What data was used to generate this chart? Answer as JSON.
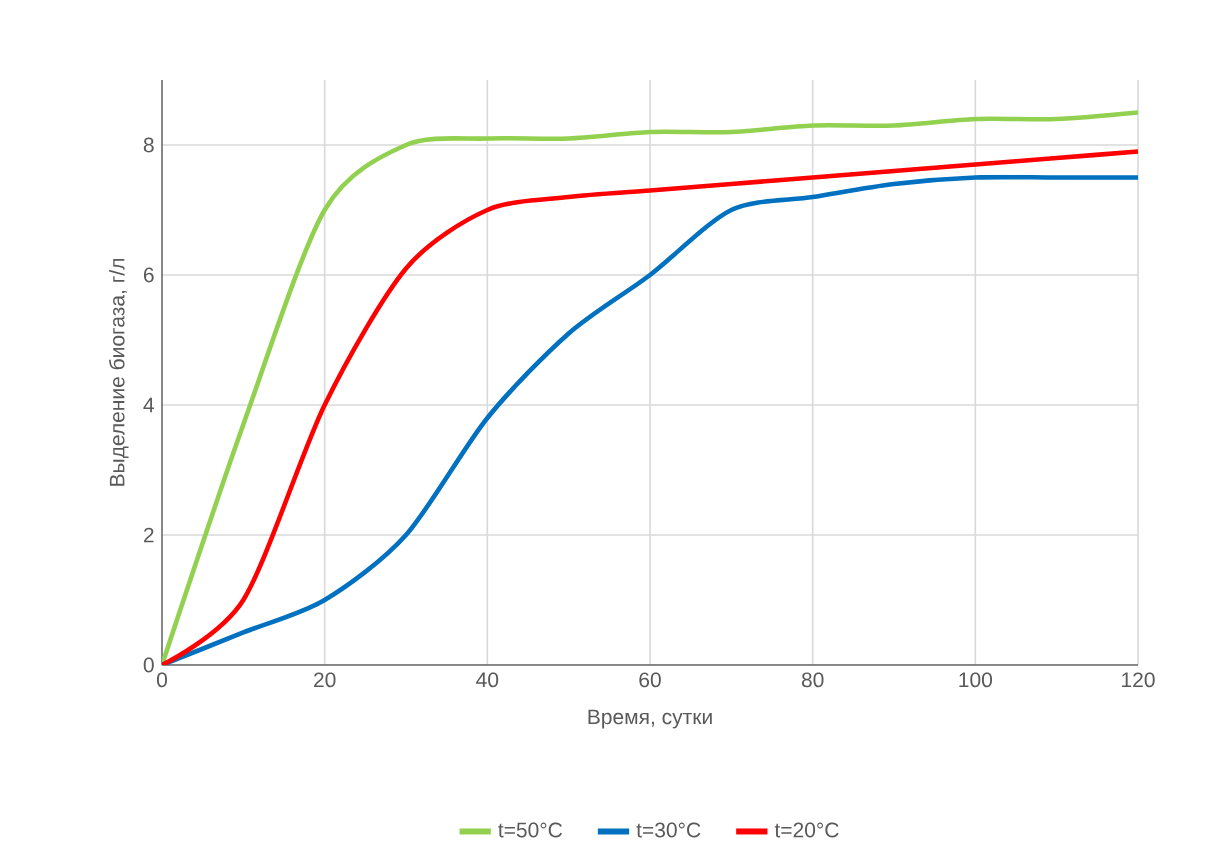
{
  "chart_data": {
    "type": "line",
    "xlabel": "Время, сутки",
    "ylabel": "Выделение биогаза, г/л",
    "x": [
      0,
      10,
      20,
      30,
      40,
      50,
      60,
      70,
      80,
      90,
      100,
      110,
      120
    ],
    "series": [
      {
        "name": "t=50°C",
        "color": "#92d050",
        "values": [
          0,
          3.7,
          7.0,
          8.0,
          8.1,
          8.1,
          8.2,
          8.2,
          8.3,
          8.3,
          8.4,
          8.4,
          8.5
        ]
      },
      {
        "name": "t=30°C",
        "color": "#0070c0",
        "values": [
          0,
          0.5,
          1.0,
          2.0,
          3.8,
          5.1,
          6.0,
          7.0,
          7.2,
          7.4,
          7.5,
          7.5,
          7.5
        ]
      },
      {
        "name": "t=20°C",
        "color": "#ff0000",
        "values": [
          0,
          1.0,
          4.0,
          6.1,
          7.0,
          7.2,
          7.3,
          7.4,
          7.5,
          7.6,
          7.7,
          7.8,
          7.9
        ]
      }
    ],
    "xlim": [
      0,
      120
    ],
    "xticks": [
      0,
      20,
      40,
      60,
      80,
      100,
      120
    ],
    "ylim": [
      0,
      9
    ],
    "yticks": [
      0,
      2,
      4,
      6,
      8
    ],
    "grid": true,
    "legend": "bottom",
    "marker": "none",
    "line_style": "solid"
  }
}
